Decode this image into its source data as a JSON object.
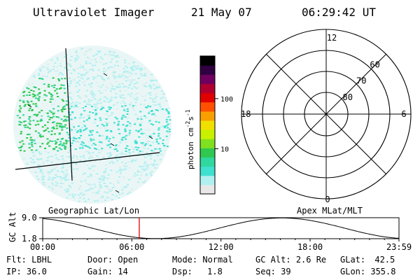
{
  "header": {
    "instrument": "Ultraviolet Imager",
    "date": "21 May 07",
    "time": "06:29:42 UT"
  },
  "colorbar": {
    "unit_label": "photon cm",
    "unit_exp1": "-2",
    "unit_mid": "s",
    "unit_exp2": "-1",
    "ticks": [
      {
        "label": "100",
        "value": 100
      },
      {
        "label": "10",
        "value": 10
      }
    ],
    "colors": [
      "#e8e8e8",
      "#b0f0f0",
      "#40e0d0",
      "#30d8a0",
      "#30c850",
      "#80e020",
      "#c8f000",
      "#f0e000",
      "#f8a000",
      "#ff5000",
      "#e00000",
      "#b00030",
      "#700060",
      "#300040",
      "#000000"
    ]
  },
  "polar_grid": {
    "mlt_labels": [
      {
        "label": "12",
        "pos": "top"
      },
      {
        "label": "18",
        "pos": "left"
      },
      {
        "label": "6",
        "pos": "right"
      },
      {
        "label": "0",
        "pos": "bottom"
      }
    ],
    "mlat_labels": [
      {
        "label": "60",
        "value": 60
      },
      {
        "label": "70",
        "value": 70
      },
      {
        "label": "80",
        "value": 80
      }
    ]
  },
  "orbit_plot": {
    "left_title": "Geographic Lat/Lon",
    "right_title": "Apex MLat/MLT",
    "y_axis_label": "GC Alt",
    "y_ticks": [
      {
        "label": "9.0",
        "value": 9.0
      },
      {
        "label": "1.8",
        "value": 1.8
      }
    ],
    "x_ticks": [
      "00:00",
      "06:00",
      "12:00",
      "18:00",
      "23:59"
    ],
    "current_time_hours": 6.5,
    "marker_color": "#e00000"
  },
  "status": {
    "filter": {
      "label": "Flt:",
      "value": "LBHL"
    },
    "door": {
      "label": "Door:",
      "value": "Open"
    },
    "mode": {
      "label": "Mode:",
      "value": "Normal"
    },
    "gc_alt": {
      "label": "GC Alt:",
      "value": "2.6 Re"
    },
    "glat": {
      "label": "GLat:",
      "value": "42.5"
    },
    "ip": {
      "label": "IP:",
      "value": "36.0"
    },
    "gain": {
      "label": "Gain:",
      "value": "14"
    },
    "dsp": {
      "label": "Dsp:",
      "value": "1.8"
    },
    "seq": {
      "label": "Seq:",
      "value": "39"
    },
    "glon": {
      "label": "GLon:",
      "value": "355.8"
    }
  }
}
